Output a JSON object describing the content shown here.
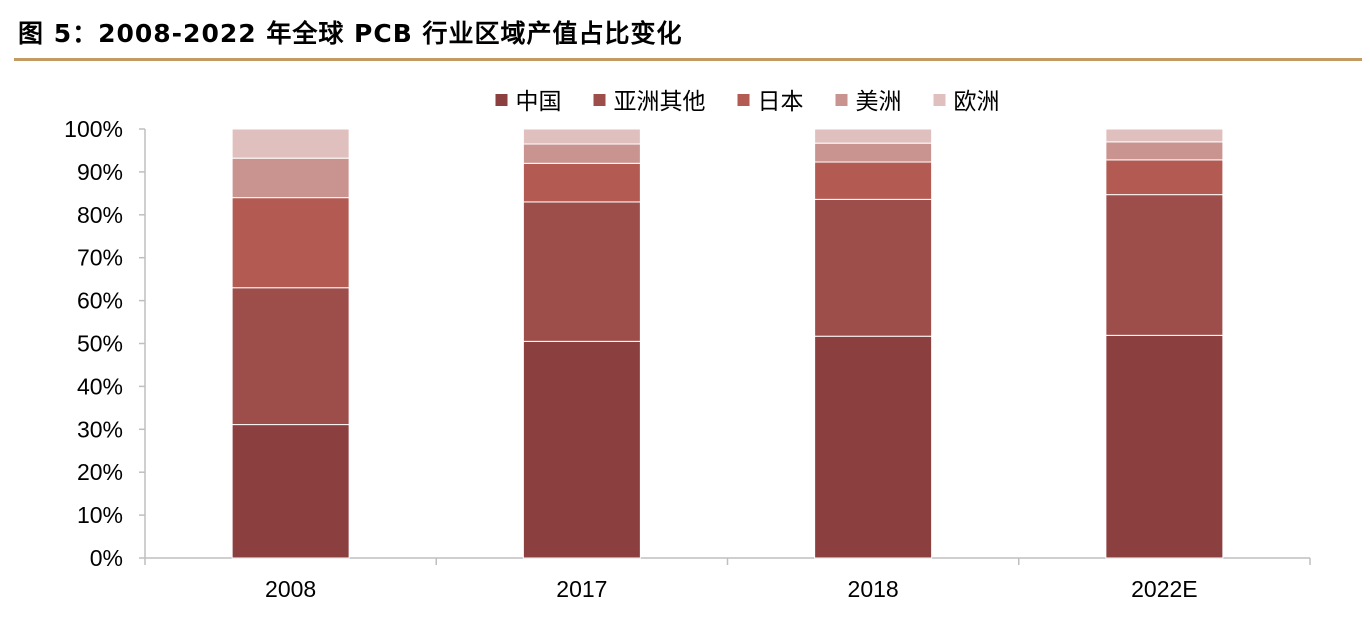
{
  "figure": {
    "title": "图 5：2008-2022 年全球 PCB 行业区域产值占比变化"
  },
  "chart_data": {
    "type": "bar",
    "stacked": true,
    "percent": true,
    "categories": [
      "2008",
      "2017",
      "2018",
      "2022E"
    ],
    "series": [
      {
        "name": "中国",
        "color": "#8b3f3e",
        "values": [
          31.1,
          50.5,
          51.7,
          51.9
        ]
      },
      {
        "name": "亚洲其他",
        "color": "#9d4e4a",
        "values": [
          31.9,
          32.5,
          31.9,
          32.8
        ]
      },
      {
        "name": "日本",
        "color": "#b35a52",
        "values": [
          21.0,
          9.0,
          8.7,
          8.1
        ]
      },
      {
        "name": "美洲",
        "color": "#c9948f",
        "values": [
          9.2,
          4.5,
          4.4,
          4.2
        ]
      },
      {
        "name": "欧洲",
        "color": "#dfc0be",
        "values": [
          6.8,
          3.5,
          3.3,
          3.0
        ]
      }
    ],
    "yticks": [
      "0%",
      "10%",
      "20%",
      "30%",
      "40%",
      "50%",
      "60%",
      "70%",
      "80%",
      "90%",
      "100%"
    ],
    "ylim": [
      0,
      100
    ],
    "grid": false,
    "legend_position": "top-center"
  }
}
